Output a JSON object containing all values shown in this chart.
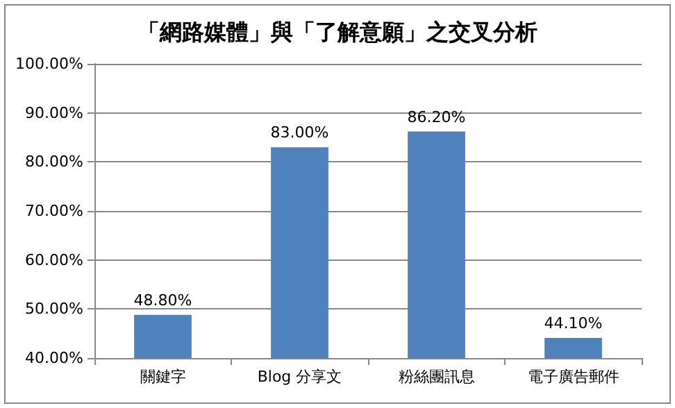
{
  "chart_data": {
    "type": "bar",
    "title": "「網路媒體」與「了解意願」之交叉分析",
    "categories": [
      "關鍵字",
      "Blog 分享文",
      "粉絲團訊息",
      "電子廣告郵件"
    ],
    "values": [
      48.8,
      83.0,
      86.2,
      44.1
    ],
    "value_labels": [
      "48.80%",
      "83.00%",
      "86.20%",
      "44.10%"
    ],
    "color": "#4f81bd",
    "ylim": [
      40,
      100
    ],
    "yticks": [
      {
        "value": 40,
        "label": "40.00%"
      },
      {
        "value": 50,
        "label": "50.00%"
      },
      {
        "value": 60,
        "label": "60.00%"
      },
      {
        "value": 70,
        "label": "70.00%"
      },
      {
        "value": 80,
        "label": "80.00%"
      },
      {
        "value": 90,
        "label": "90.00%"
      },
      {
        "value": 100,
        "label": "100.00%"
      }
    ],
    "grid": true
  }
}
